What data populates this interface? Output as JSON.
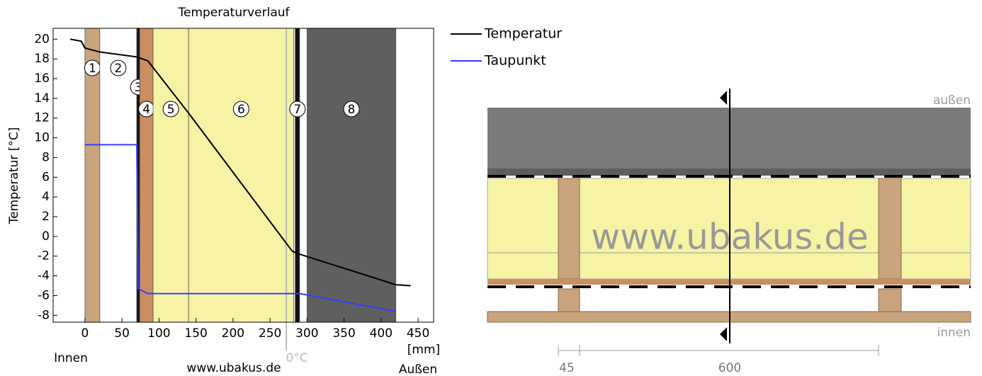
{
  "chart_data": {
    "type": "line",
    "title": "Temperaturverlauf",
    "y_label": "Temperatur [°C]",
    "x_label": "[mm]",
    "inside_label": "Innen",
    "outside_label": "Außen",
    "watermark": "www.ubakus.de",
    "xlim": [
      -43,
      471
    ],
    "ylim": [
      -8.7,
      21.1
    ],
    "xticks": [
      0,
      50,
      100,
      150,
      200,
      250,
      300,
      350,
      400,
      450
    ],
    "yticks": [
      -8,
      -6,
      -4,
      -2,
      0,
      2,
      4,
      6,
      8,
      10,
      12,
      14,
      16,
      18,
      20
    ],
    "layers": [
      {
        "label": "1",
        "start": 0,
        "end": 20,
        "color": "#c9a47c"
      },
      {
        "label": "2",
        "start": 20,
        "end": 70,
        "color": "#ffffff"
      },
      {
        "label": "3",
        "start": 70,
        "end": 74,
        "color": "#111111"
      },
      {
        "label": "4",
        "start": 74,
        "end": 92,
        "color": "#c98f62"
      },
      {
        "label": "5",
        "start": 92,
        "end": 140,
        "color": "#f7f3a4"
      },
      {
        "label": "6",
        "start": 140,
        "end": 282,
        "color": "#f7f3a4"
      },
      {
        "label": "7",
        "start": 284,
        "end": 290,
        "color": "#111111"
      },
      {
        "label": "8",
        "start": 300,
        "end": 420,
        "color": "#5f5f5f"
      }
    ],
    "zero_line": {
      "x": 272,
      "label": "0°C"
    },
    "series": [
      {
        "name": "Temperatur",
        "color": "#000000",
        "x": [
          -20,
          -5,
          0,
          20,
          70,
          85,
          140,
          280,
          290,
          420,
          440
        ],
        "values": [
          20,
          19.8,
          19.1,
          18.7,
          18.2,
          17.8,
          12.5,
          -1.5,
          -1.8,
          -4.9,
          -5.0
        ]
      },
      {
        "name": "Taupunkt",
        "color": "#3a3aff",
        "x": [
          0,
          70,
          72,
          85,
          290,
          420
        ],
        "values": [
          9.3,
          9.3,
          -5.3,
          -5.8,
          -5.8,
          -7.6
        ]
      }
    ]
  },
  "diagram": {
    "outside": "außen",
    "inside": "innen",
    "watermark": "www.ubakus.de",
    "dim_small": "45",
    "dim_large": "600"
  }
}
